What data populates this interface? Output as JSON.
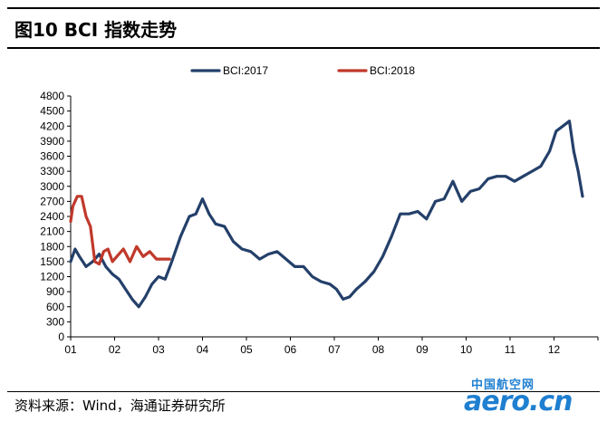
{
  "figure": {
    "title": "图10 BCI 指数走势",
    "source": "资料来源：Wind，海通证券研究所"
  },
  "watermark": {
    "text_cn": "中国航空网",
    "text_en": "aero.cn",
    "color": "#1f7fd0"
  },
  "colors": {
    "series_2017": "#24406a",
    "series_2018": "#c0392b",
    "axis": "#000000"
  },
  "chart_data": {
    "type": "line",
    "title": "",
    "xlabel": "",
    "ylabel": "",
    "x_ticks": [
      "01",
      "02",
      "03",
      "04",
      "05",
      "06",
      "07",
      "08",
      "09",
      "10",
      "11",
      "12"
    ],
    "y_ticks": [
      0,
      300,
      600,
      900,
      1200,
      1500,
      1800,
      2100,
      2400,
      2700,
      3000,
      3300,
      3600,
      3900,
      4200,
      4500,
      4800
    ],
    "ylim": [
      0,
      4800
    ],
    "xlim": [
      1,
      13
    ],
    "legend_position": "top-center",
    "grid": false,
    "series": [
      {
        "name": "BCI:2017",
        "color": "#24406a",
        "x": [
          1.0,
          1.1,
          1.2,
          1.35,
          1.5,
          1.65,
          1.8,
          1.95,
          2.1,
          2.25,
          2.4,
          2.55,
          2.7,
          2.85,
          3.0,
          3.15,
          3.3,
          3.5,
          3.7,
          3.85,
          4.0,
          4.15,
          4.3,
          4.5,
          4.7,
          4.9,
          5.1,
          5.3,
          5.5,
          5.7,
          5.9,
          6.1,
          6.3,
          6.5,
          6.7,
          6.9,
          7.05,
          7.2,
          7.35,
          7.5,
          7.7,
          7.9,
          8.1,
          8.3,
          8.5,
          8.7,
          8.9,
          9.1,
          9.3,
          9.5,
          9.7,
          9.9,
          10.1,
          10.3,
          10.5,
          10.7,
          10.9,
          11.1,
          11.3,
          11.5,
          11.7,
          11.9,
          12.05,
          12.2,
          12.35,
          12.45,
          12.55,
          12.65
        ],
        "values": [
          1500,
          1750,
          1600,
          1400,
          1500,
          1650,
          1400,
          1250,
          1150,
          950,
          750,
          600,
          800,
          1050,
          1200,
          1150,
          1500,
          2000,
          2400,
          2450,
          2750,
          2450,
          2250,
          2200,
          1900,
          1750,
          1700,
          1550,
          1650,
          1700,
          1550,
          1400,
          1400,
          1200,
          1100,
          1050,
          950,
          750,
          800,
          950,
          1100,
          1300,
          1600,
          2000,
          2450,
          2450,
          2500,
          2350,
          2700,
          2750,
          3100,
          2700,
          2900,
          2950,
          3150,
          3200,
          3200,
          3100,
          3200,
          3300,
          3400,
          3700,
          4100,
          4200,
          4300,
          3700,
          3300,
          2800
        ]
      },
      {
        "name": "BCI:2018",
        "color": "#c0392b",
        "x": [
          1.0,
          1.05,
          1.15,
          1.25,
          1.35,
          1.45,
          1.55,
          1.65,
          1.75,
          1.85,
          1.95,
          2.05,
          2.2,
          2.35,
          2.5,
          2.65,
          2.8,
          2.95,
          3.1,
          3.25
        ],
        "values": [
          2300,
          2600,
          2800,
          2800,
          2400,
          2200,
          1500,
          1450,
          1700,
          1750,
          1500,
          1600,
          1750,
          1500,
          1800,
          1600,
          1700,
          1550,
          1550,
          1550
        ]
      }
    ]
  }
}
